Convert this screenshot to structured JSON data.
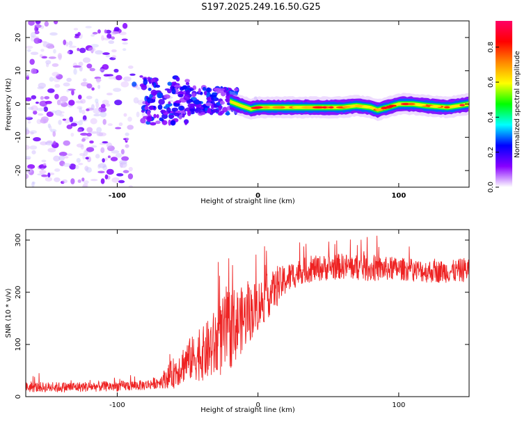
{
  "title": "S197.2025.249.16.50.G25",
  "colors": {
    "snr_line": "#ee2222",
    "frame": "#000000"
  },
  "chart_data": [
    {
      "type": "heatmap",
      "panel": "top",
      "xlabel": "Height of straight line (km)",
      "ylabel": "Frequency (Hz)",
      "xlim": [
        -165,
        150
      ],
      "ylim": [
        -25,
        25
      ],
      "x_ticks": [
        -100,
        0,
        100
      ],
      "y_ticks": [
        -20,
        -10,
        0,
        10,
        20
      ],
      "x_tick_labels": [
        "-100",
        "0",
        "100"
      ],
      "y_tick_labels": [
        "-20",
        "-10",
        "0",
        "10",
        "20"
      ],
      "colorbar": {
        "label": "Normalized spectral amplitude",
        "range": [
          0,
          0.95
        ],
        "ticks": [
          0.0,
          0.2,
          0.4,
          0.6,
          0.8
        ],
        "tick_labels": [
          "0.0",
          "0.2",
          "0.4",
          "0.6",
          "0.8"
        ],
        "colormap": [
          "#ffffff",
          "#8800ff",
          "#0000ff",
          "#00ffff",
          "#00ff00",
          "#ffff00",
          "#ff8800",
          "#ff0000",
          "#ff0066"
        ]
      },
      "ridge_path": [
        [
          -40,
          1.5
        ],
        [
          -30,
          1.0
        ],
        [
          -25,
          0.5
        ],
        [
          -20,
          0.8
        ],
        [
          -12,
          -0.5
        ],
        [
          -5,
          -1.5
        ],
        [
          0,
          -1.0
        ],
        [
          20,
          -1.0
        ],
        [
          40,
          -1.0
        ],
        [
          60,
          -1.0
        ],
        [
          70,
          -0.5
        ],
        [
          80,
          -1.0
        ],
        [
          85,
          -1.8
        ],
        [
          92,
          -1.0
        ],
        [
          100,
          0.0
        ],
        [
          110,
          0.0
        ],
        [
          120,
          -0.5
        ],
        [
          135,
          -1.0
        ],
        [
          150,
          0.0
        ]
      ]
    },
    {
      "type": "line",
      "panel": "bottom",
      "xlabel": "Height of straight line (km)",
      "ylabel": "SNR (10 * v/v)",
      "xlim": [
        -165,
        150
      ],
      "ylim": [
        0,
        320
      ],
      "x_ticks": [
        -100,
        0,
        100
      ],
      "y_ticks": [
        0,
        100,
        200,
        300
      ],
      "x_tick_labels": [
        "-100",
        "0",
        "100"
      ],
      "y_tick_labels": [
        "0",
        "100",
        "200",
        "300"
      ],
      "series": [
        {
          "name": "SNR",
          "x": [
            -165,
            -140,
            -120,
            -100,
            -80,
            -70,
            -60,
            -50,
            -40,
            -30,
            -20,
            -10,
            0,
            10,
            20,
            30,
            40,
            60,
            80,
            100,
            120,
            140,
            150
          ],
          "y": [
            18,
            18,
            19,
            20,
            22,
            28,
            45,
            70,
            80,
            100,
            130,
            150,
            175,
            200,
            225,
            240,
            245,
            250,
            245,
            245,
            240,
            240,
            245
          ],
          "spread": [
            10,
            10,
            10,
            10,
            10,
            12,
            30,
            40,
            50,
            70,
            80,
            60,
            50,
            40,
            30,
            25,
            25,
            25,
            25,
            22,
            22,
            22,
            25
          ]
        }
      ]
    }
  ]
}
